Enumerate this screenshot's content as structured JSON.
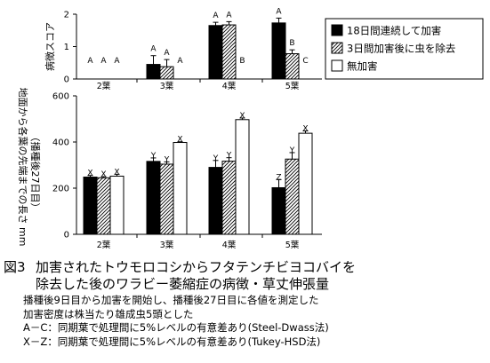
{
  "chart_data": [
    {
      "type": "bar",
      "ylabel": "病徴スコア",
      "ylim": [
        0,
        2
      ],
      "yticks": [
        0,
        1,
        2
      ],
      "categories": [
        "2葉",
        "3葉",
        "4葉",
        "5葉"
      ],
      "series": [
        {
          "name": "18日間連続して加害",
          "values": [
            0,
            0.45,
            1.65,
            1.73
          ],
          "errors": [
            0,
            0.27,
            0.1,
            0.15
          ]
        },
        {
          "name": "3日間加害後に虫を除去",
          "values": [
            0,
            0.38,
            1.67,
            0.78
          ],
          "errors": [
            0,
            0.22,
            0.1,
            0.12
          ]
        },
        {
          "name": "無加害",
          "values": [
            0,
            0,
            0,
            0
          ],
          "errors": [
            0,
            0,
            0,
            0
          ]
        }
      ],
      "significance_labels": [
        [
          "A",
          "A",
          "A"
        ],
        [
          "A",
          "A",
          "A"
        ],
        [
          "A",
          "A",
          "B"
        ],
        [
          "A",
          "B",
          "C"
        ]
      ],
      "legend_position": "top-right"
    },
    {
      "type": "bar",
      "ylabel": "地面から各葉の先端までの長さ mm",
      "ylabel2": "（播種後27日目）",
      "ylim": [
        0,
        600
      ],
      "yticks": [
        0,
        200,
        400,
        600
      ],
      "categories": [
        "2葉",
        "3葉",
        "4葉",
        "5葉"
      ],
      "series": [
        {
          "name": "18日間連続して加害",
          "values": [
            248,
            316,
            290,
            202
          ],
          "errors": [
            7,
            15,
            30,
            35
          ]
        },
        {
          "name": "3日間加害後に虫を除去",
          "values": [
            245,
            304,
            317,
            326
          ],
          "errors": [
            5,
            10,
            15,
            28
          ]
        },
        {
          "name": "無加害",
          "values": [
            252,
            398,
            497,
            438
          ],
          "errors": [
            8,
            3,
            7,
            10
          ]
        }
      ],
      "significance_labels": [
        [
          "X",
          "X",
          "X"
        ],
        [
          "Y",
          "Y",
          "X"
        ],
        [
          "Y",
          "Y",
          "X"
        ],
        [
          "Z",
          "Y",
          "X"
        ]
      ]
    }
  ],
  "caption": {
    "figure_number": "図3",
    "title_line1": "加害されたトウモロコシからフタテンチビヨコバイを",
    "title_line2": "除去した後のワラビー萎縮症の病徴・草丈伸張量",
    "note1": "播種後9日目から加害を開始し、播種後27日目に各値を測定した",
    "note2": "加害密度は株当たり雄成虫5頭とした",
    "note3": "A－C：同期葉で処理間に5%レベルの有意差あり(Steel-Dwass法)",
    "note4": "X－Z：同期葉で処理間に5%レベルの有意差あり(Tukey-HSD法)"
  },
  "colors": {
    "bar_continuous": "#000000",
    "bar_removed": "hatched",
    "bar_none": "#ffffff",
    "axis": "#000000"
  }
}
